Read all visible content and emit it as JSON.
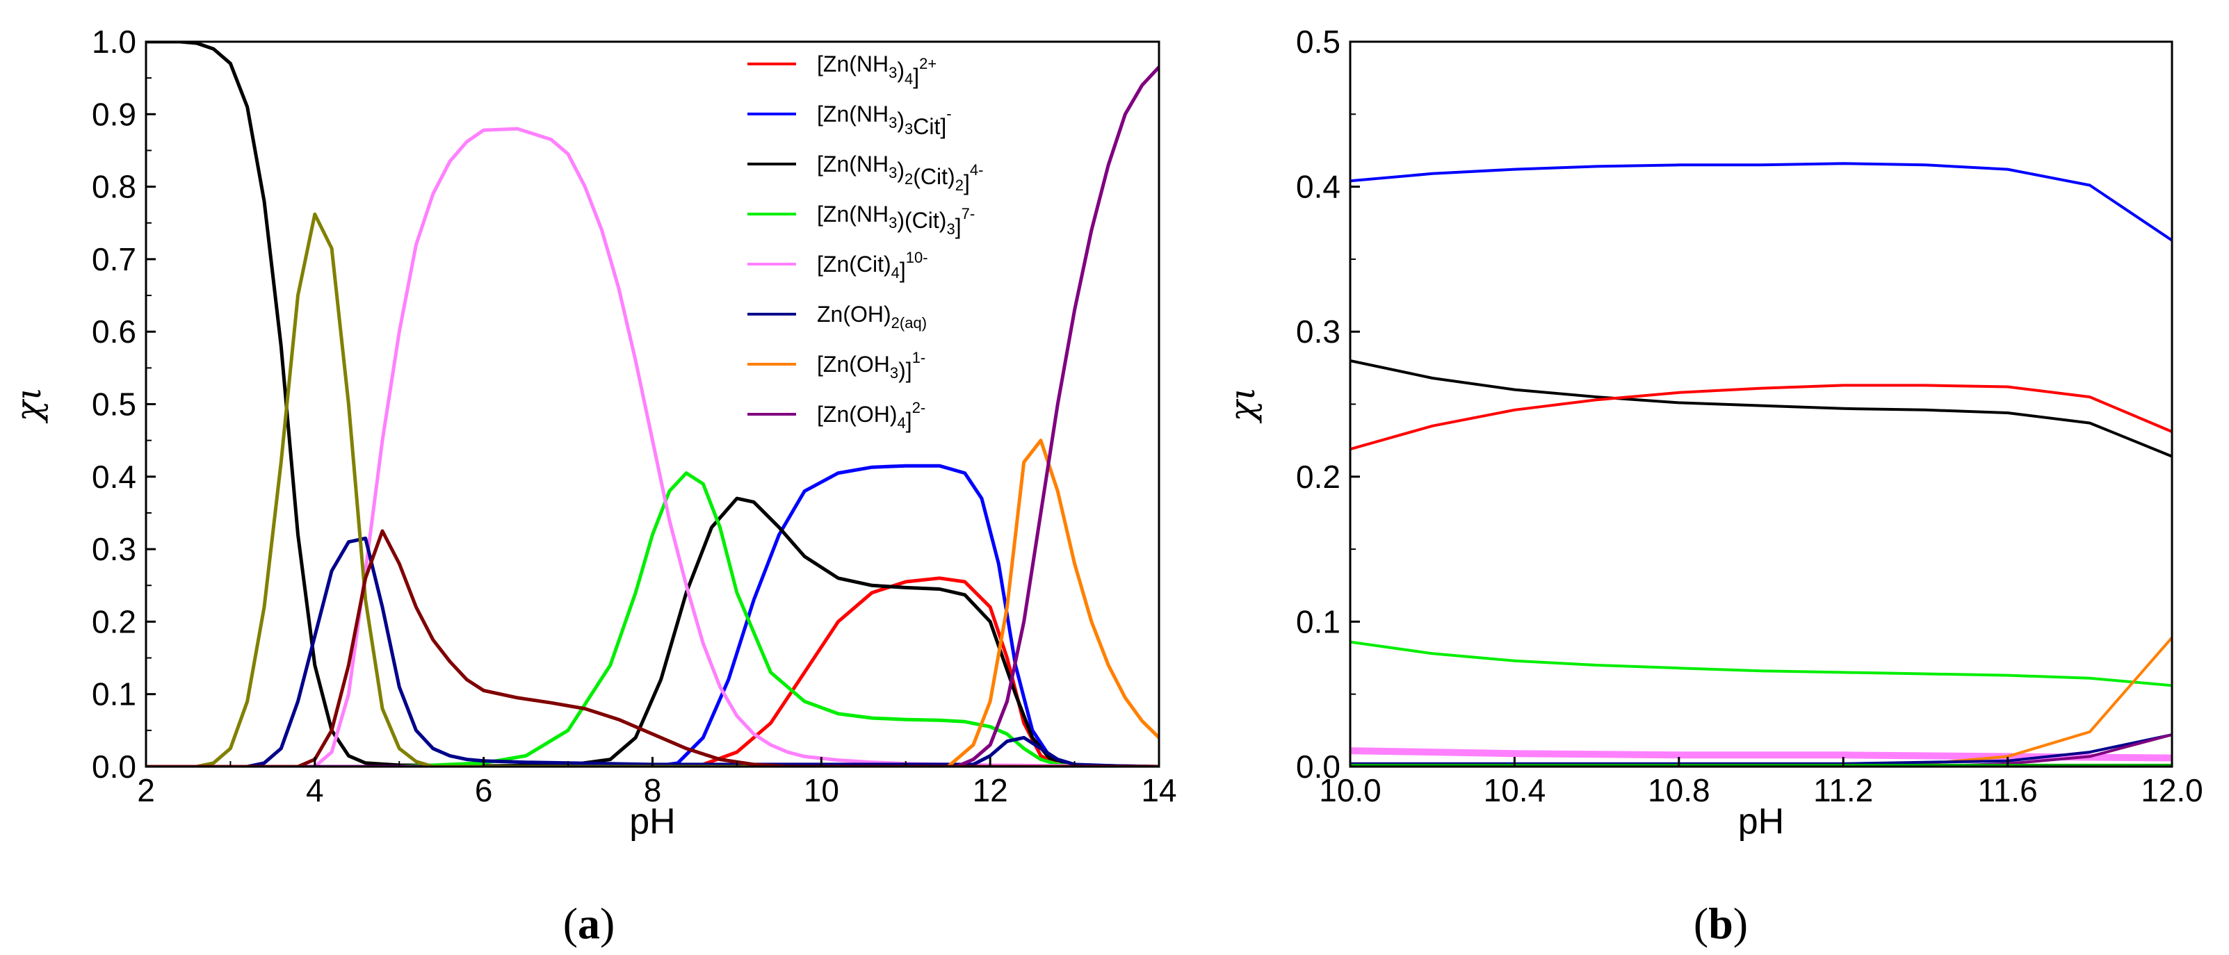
{
  "figure": {
    "panel_a_label": [
      "(",
      "a",
      ")"
    ],
    "panel_b_label": [
      "(",
      "b",
      ")"
    ]
  },
  "chart_data": [
    {
      "type": "line",
      "panel": "a",
      "xlabel": "pH",
      "ylabel": "χι",
      "xlim": [
        2,
        14
      ],
      "ylim": [
        0,
        1.0
      ],
      "xticks": [
        2,
        4,
        6,
        8,
        10,
        12,
        14
      ],
      "yticks": [
        0.0,
        0.1,
        0.2,
        0.3,
        0.4,
        0.5,
        0.6,
        0.7,
        0.8,
        0.9,
        1.0
      ],
      "ytick_labels": [
        "0.0",
        "0.1",
        "0.2",
        "0.3",
        "0.4",
        "0.5",
        "0.6",
        "0.7",
        "0.8",
        "0.9",
        "1.0"
      ],
      "legend_position": "top-right",
      "legend": [
        {
          "series": "zn_nh3_4",
          "color": "#ff0000",
          "parts": [
            [
              "[Zn(NH",
              "n"
            ],
            [
              "3",
              "sub"
            ],
            [
              ")",
              "n"
            ],
            [
              "4",
              "sub"
            ],
            [
              "]",
              "n"
            ],
            [
              "2+",
              "sup"
            ]
          ]
        },
        {
          "series": "zn_nh3_3_cit",
          "color": "#0000ff",
          "parts": [
            [
              "[Zn(NH",
              "n"
            ],
            [
              "3",
              "sub"
            ],
            [
              ")",
              "n"
            ],
            [
              "3",
              "sub"
            ],
            [
              "Cit]",
              "n"
            ],
            [
              "-",
              "sup"
            ]
          ]
        },
        {
          "series": "zn_nh3_2_cit2",
          "color": "#000000",
          "parts": [
            [
              "[Zn(NH",
              "n"
            ],
            [
              "3",
              "sub"
            ],
            [
              ")",
              "n"
            ],
            [
              "2",
              "sub"
            ],
            [
              "(Cit)",
              "n"
            ],
            [
              "2",
              "sub"
            ],
            [
              "]",
              "n"
            ],
            [
              "4-",
              "sup"
            ]
          ]
        },
        {
          "series": "zn_nh3_cit3",
          "color": "#00ee00",
          "parts": [
            [
              "[Zn(NH",
              "n"
            ],
            [
              "3",
              "sub"
            ],
            [
              ")(Cit)",
              "n"
            ],
            [
              "3",
              "sub"
            ],
            [
              "]",
              "n"
            ],
            [
              "7-",
              "sup"
            ]
          ]
        },
        {
          "series": "zn_cit4",
          "color": "#ff80ff",
          "parts": [
            [
              "[Zn(Cit)",
              "n"
            ],
            [
              "4",
              "sub"
            ],
            [
              "]",
              "n"
            ],
            [
              "10-",
              "sup"
            ]
          ]
        },
        {
          "series": "zn_oh2_aq",
          "color": "#00008b",
          "parts": [
            [
              "Zn(OH)",
              "n"
            ],
            [
              "2(aq)",
              "sub"
            ]
          ]
        },
        {
          "series": "zn_oh3",
          "color": "#ff8000",
          "parts": [
            [
              "[Zn(OH",
              "n"
            ],
            [
              "3",
              "sub"
            ],
            [
              ")]",
              "n"
            ],
            [
              "1-",
              "sup"
            ]
          ]
        },
        {
          "series": "zn_oh4",
          "color": "#800080",
          "parts": [
            [
              "[Zn(OH)",
              "n"
            ],
            [
              "4",
              "sub"
            ],
            [
              "]",
              "n"
            ],
            [
              "2-",
              "sup"
            ]
          ]
        }
      ],
      "series": [
        {
          "name": "zn_nh3_4",
          "color": "#ff0000",
          "x": [
            2,
            8,
            8.6,
            9.0,
            9.4,
            9.8,
            10.2,
            10.6,
            11.0,
            11.4,
            11.7,
            12.0,
            12.2,
            12.4,
            12.6,
            12.8,
            13.0,
            14
          ],
          "y": [
            0,
            0,
            0.003,
            0.02,
            0.06,
            0.13,
            0.2,
            0.24,
            0.255,
            0.26,
            0.255,
            0.22,
            0.15,
            0.06,
            0.015,
            0.003,
            0,
            0
          ]
        },
        {
          "name": "zn_nh3_3_cit",
          "color": "#0000ff",
          "x": [
            2,
            8,
            8.3,
            8.6,
            8.9,
            9.2,
            9.5,
            9.8,
            10.2,
            10.6,
            11.0,
            11.4,
            11.7,
            11.9,
            12.1,
            12.3,
            12.5,
            12.7,
            13.0,
            14
          ],
          "y": [
            0,
            0,
            0.005,
            0.04,
            0.12,
            0.23,
            0.32,
            0.38,
            0.405,
            0.413,
            0.415,
            0.415,
            0.405,
            0.37,
            0.28,
            0.14,
            0.05,
            0.015,
            0,
            0
          ]
        },
        {
          "name": "zn_nh3_2_cit2",
          "color": "#000000",
          "x": [
            2,
            2.4,
            2.6,
            2.8,
            3.0,
            3.2,
            3.4,
            3.6,
            3.8,
            4.0,
            4.2,
            4.4,
            4.6,
            5.0,
            6.0,
            7.0,
            7.5,
            7.8,
            8.1,
            8.4,
            8.7,
            9.0,
            9.2,
            9.5,
            9.8,
            10.2,
            10.6,
            11.0,
            11.4,
            11.7,
            12.0,
            12.3,
            12.5,
            12.7,
            13.0,
            14
          ],
          "y": [
            1.0,
            1.0,
            0.998,
            0.99,
            0.97,
            0.91,
            0.78,
            0.58,
            0.32,
            0.14,
            0.05,
            0.015,
            0.005,
            0.002,
            0.001,
            0.002,
            0.01,
            0.04,
            0.12,
            0.24,
            0.33,
            0.37,
            0.365,
            0.33,
            0.29,
            0.26,
            0.25,
            0.247,
            0.245,
            0.237,
            0.2,
            0.1,
            0.04,
            0.012,
            0.002,
            0
          ]
        },
        {
          "name": "zn_nh3_cit3",
          "color": "#00ee00",
          "x": [
            2,
            5.0,
            6.0,
            6.5,
            7.0,
            7.5,
            7.8,
            8.0,
            8.2,
            8.4,
            8.6,
            8.8,
            9.0,
            9.4,
            9.8,
            10.2,
            10.6,
            11.0,
            11.4,
            11.7,
            12.0,
            12.2,
            12.4,
            12.6,
            12.8,
            13.0,
            14
          ],
          "y": [
            0,
            0,
            0.005,
            0.015,
            0.05,
            0.14,
            0.24,
            0.32,
            0.38,
            0.405,
            0.39,
            0.33,
            0.24,
            0.13,
            0.09,
            0.073,
            0.067,
            0.065,
            0.064,
            0.062,
            0.055,
            0.045,
            0.025,
            0.01,
            0.003,
            0,
            0
          ]
        },
        {
          "name": "zn_cit4",
          "color": "#ff80ff",
          "x": [
            2,
            4.0,
            4.2,
            4.4,
            4.6,
            4.8,
            5.0,
            5.2,
            5.4,
            5.6,
            5.8,
            6.0,
            6.4,
            6.8,
            7.0,
            7.2,
            7.4,
            7.6,
            7.8,
            8.0,
            8.2,
            8.4,
            8.6,
            8.8,
            9.0,
            9.2,
            9.4,
            9.6,
            9.8,
            10.2,
            10.6,
            11.0,
            11.5,
            12,
            14
          ],
          "y": [
            0,
            0,
            0.02,
            0.1,
            0.27,
            0.45,
            0.6,
            0.72,
            0.79,
            0.835,
            0.862,
            0.878,
            0.88,
            0.865,
            0.845,
            0.8,
            0.74,
            0.66,
            0.56,
            0.45,
            0.34,
            0.25,
            0.17,
            0.11,
            0.07,
            0.045,
            0.03,
            0.02,
            0.014,
            0.009,
            0.006,
            0.004,
            0.003,
            0.002,
            0
          ]
        },
        {
          "name": "zn_oh2_aq",
          "color": "#00008b",
          "x": [
            2,
            3.2,
            3.4,
            3.6,
            3.8,
            4.0,
            4.2,
            4.4,
            4.6,
            4.8,
            5.0,
            5.2,
            5.4,
            5.6,
            5.8,
            6.0,
            6.5,
            7.0,
            7.5,
            8.0,
            11.8,
            12.0,
            12.2,
            12.4,
            12.6,
            12.8,
            13.0,
            13.5,
            14
          ],
          "y": [
            0,
            0,
            0.005,
            0.025,
            0.09,
            0.18,
            0.27,
            0.31,
            0.315,
            0.22,
            0.11,
            0.05,
            0.025,
            0.015,
            0.01,
            0.008,
            0.006,
            0.005,
            0.004,
            0.003,
            0.003,
            0.015,
            0.035,
            0.04,
            0.025,
            0.01,
            0.003,
            0.001,
            0
          ]
        },
        {
          "name": "zn_oh3",
          "color": "#ff8000",
          "x": [
            2,
            11.5,
            11.8,
            12.0,
            12.2,
            12.4,
            12.6,
            12.8,
            13.0,
            13.2,
            13.4,
            13.6,
            13.8,
            14.0
          ],
          "y": [
            0,
            0,
            0.03,
            0.09,
            0.22,
            0.42,
            0.45,
            0.38,
            0.28,
            0.2,
            0.14,
            0.095,
            0.063,
            0.04
          ]
        },
        {
          "name": "zn_oh4",
          "color": "#800080",
          "x": [
            2,
            11.6,
            11.8,
            12.0,
            12.2,
            12.4,
            12.6,
            12.8,
            13.0,
            13.2,
            13.4,
            13.6,
            13.8,
            14.0
          ],
          "y": [
            0,
            0,
            0.01,
            0.03,
            0.09,
            0.2,
            0.35,
            0.5,
            0.63,
            0.74,
            0.83,
            0.9,
            0.94,
            0.965
          ]
        },
        {
          "name": "zn_extra_olive",
          "color": "#808000",
          "x": [
            2,
            2.6,
            2.8,
            3.0,
            3.2,
            3.4,
            3.6,
            3.8,
            4.0,
            4.2,
            4.4,
            4.6,
            4.8,
            5.0,
            5.2,
            5.4,
            14
          ],
          "y": [
            0,
            0,
            0.005,
            0.025,
            0.09,
            0.22,
            0.42,
            0.65,
            0.762,
            0.715,
            0.5,
            0.23,
            0.08,
            0.025,
            0.007,
            0,
            0
          ]
        },
        {
          "name": "zn_extra_maroon",
          "color": "#800000",
          "x": [
            2,
            3.8,
            4.0,
            4.2,
            4.4,
            4.6,
            4.8,
            5.0,
            5.2,
            5.4,
            5.6,
            5.8,
            6.0,
            6.4,
            6.8,
            7.2,
            7.6,
            8.0,
            8.4,
            8.8,
            9.2,
            9.6,
            14
          ],
          "y": [
            0,
            0,
            0.01,
            0.05,
            0.14,
            0.26,
            0.325,
            0.28,
            0.22,
            0.175,
            0.145,
            0.12,
            0.105,
            0.095,
            0.088,
            0.08,
            0.065,
            0.045,
            0.025,
            0.01,
            0.003,
            0,
            0
          ]
        }
      ]
    },
    {
      "type": "line",
      "panel": "b",
      "xlabel": "pH",
      "ylabel": "χι",
      "xlim": [
        10.0,
        12.0
      ],
      "ylim": [
        0,
        0.5
      ],
      "xticks": [
        10.0,
        10.4,
        10.8,
        11.2,
        11.6,
        12.0
      ],
      "xtick_labels": [
        "10.0",
        "10.4",
        "10.8",
        "11.2",
        "11.6",
        "12.0"
      ],
      "yticks": [
        0.0,
        0.1,
        0.2,
        0.3,
        0.4,
        0.5
      ],
      "ytick_labels": [
        "0.0",
        "0.1",
        "0.2",
        "0.3",
        "0.4",
        "0.5"
      ],
      "series": [
        {
          "name": "zn_nh3_3_cit",
          "color": "#0000ff",
          "width": 4,
          "x": [
            10.0,
            10.2,
            10.4,
            10.6,
            10.8,
            11.0,
            11.2,
            11.4,
            11.6,
            11.8,
            12.0
          ],
          "y": [
            0.404,
            0.409,
            0.412,
            0.414,
            0.415,
            0.415,
            0.416,
            0.415,
            0.412,
            0.401,
            0.363
          ]
        },
        {
          "name": "zn_nh3_2_cit2",
          "color": "#000000",
          "width": 4,
          "x": [
            10.0,
            10.2,
            10.4,
            10.6,
            10.8,
            11.0,
            11.2,
            11.4,
            11.6,
            11.8,
            12.0
          ],
          "y": [
            0.28,
            0.268,
            0.26,
            0.255,
            0.251,
            0.249,
            0.247,
            0.246,
            0.244,
            0.237,
            0.214
          ]
        },
        {
          "name": "zn_nh3_4",
          "color": "#ff0000",
          "width": 4,
          "x": [
            10.0,
            10.2,
            10.4,
            10.6,
            10.8,
            11.0,
            11.2,
            11.4,
            11.6,
            11.8,
            12.0
          ],
          "y": [
            0.219,
            0.235,
            0.246,
            0.253,
            0.258,
            0.261,
            0.263,
            0.263,
            0.262,
            0.255,
            0.231
          ]
        },
        {
          "name": "zn_nh3_cit3",
          "color": "#00ee00",
          "width": 4,
          "x": [
            10.0,
            10.2,
            10.4,
            10.6,
            10.8,
            11.0,
            11.2,
            11.4,
            11.6,
            11.8,
            12.0
          ],
          "y": [
            0.086,
            0.078,
            0.073,
            0.07,
            0.068,
            0.066,
            0.065,
            0.064,
            0.063,
            0.061,
            0.056
          ]
        },
        {
          "name": "zn_cit4",
          "color": "#ff80ff",
          "width": 10,
          "x": [
            10.0,
            10.4,
            10.8,
            11.2,
            11.6,
            12.0
          ],
          "y": [
            0.011,
            0.009,
            0.008,
            0.008,
            0.007,
            0.006
          ]
        },
        {
          "name": "zn_oh3",
          "color": "#ff8000",
          "width": 4,
          "x": [
            10.0,
            11.0,
            11.4,
            11.6,
            11.8,
            12.0
          ],
          "y": [
            0,
            0.0,
            0.002,
            0.007,
            0.024,
            0.089
          ]
        },
        {
          "name": "zn_oh2_aq",
          "color": "#00008b",
          "width": 4,
          "x": [
            10.0,
            11.2,
            11.6,
            11.8,
            12.0
          ],
          "y": [
            0.002,
            0.002,
            0.004,
            0.01,
            0.022
          ]
        },
        {
          "name": "zn_oh4",
          "color": "#800080",
          "width": 4,
          "x": [
            10.0,
            11.4,
            11.6,
            11.8,
            12.0
          ],
          "y": [
            0,
            0.0,
            0.002,
            0.007,
            0.022
          ]
        },
        {
          "name": "zn_baseline_green",
          "color": "#00aa00",
          "width": 4,
          "x": [
            10.0,
            12.0
          ],
          "y": [
            0.001,
            0.001
          ]
        }
      ]
    }
  ]
}
